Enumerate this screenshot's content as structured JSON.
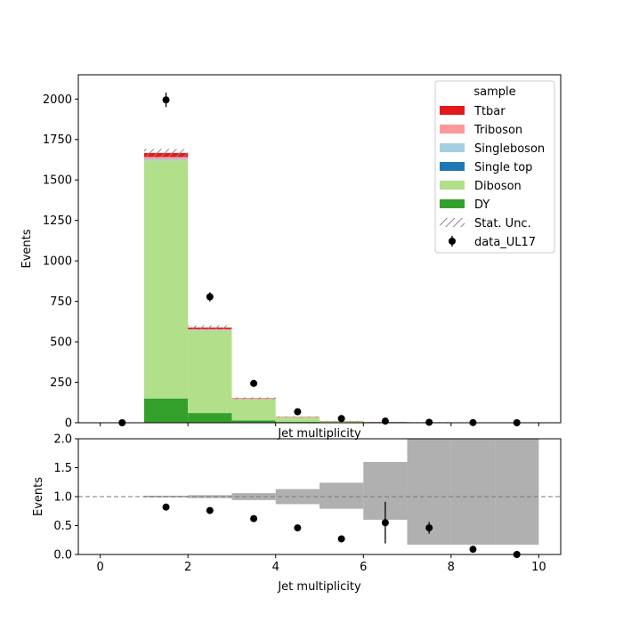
{
  "chart_data": [
    {
      "panel": "main",
      "type": "bar",
      "stacked": true,
      "xlabel": "Jet multiplicity",
      "ylabel": "Events",
      "xlim": [
        -0.5,
        10.5
      ],
      "ylim": [
        0,
        2150
      ],
      "xticks": [
        0,
        2,
        4,
        6,
        8,
        10
      ],
      "yticks": [
        0,
        250,
        500,
        750,
        1000,
        1250,
        1500,
        1750,
        2000
      ],
      "bin_edges": [
        0,
        1,
        2,
        3,
        4,
        5,
        6,
        7,
        8,
        9,
        10
      ],
      "series": [
        {
          "name": "DY",
          "color": "#33a02c",
          "values": [
            0,
            150,
            60,
            15,
            5,
            2,
            1,
            0,
            0,
            0
          ]
        },
        {
          "name": "Diboson",
          "color": "#b2df8a",
          "values": [
            0,
            1470,
            510,
            130,
            28,
            8,
            3,
            1,
            0,
            0
          ]
        },
        {
          "name": "Single top",
          "color": "#1f78b4",
          "values": [
            0,
            0,
            0,
            0,
            0,
            0,
            0,
            0,
            0,
            0
          ]
        },
        {
          "name": "Singleboson",
          "color": "#a6cee3",
          "values": [
            0,
            10,
            3,
            1,
            0,
            0,
            0,
            0,
            0,
            0
          ]
        },
        {
          "name": "Triboson",
          "color": "#fb9a99",
          "values": [
            0,
            12,
            5,
            2,
            1,
            0,
            0,
            0,
            0,
            0
          ]
        },
        {
          "name": "Ttbar",
          "color": "#e31a1c",
          "values": [
            0,
            25,
            10,
            3,
            2,
            1,
            1,
            2,
            0,
            0
          ]
        }
      ],
      "stat_unc": {
        "name": "Stat. Unc.",
        "values": [
          0,
          25,
          14,
          6,
          3,
          1.5,
          1,
          1,
          0,
          0
        ]
      },
      "data": {
        "name": "data_UL17",
        "x": [
          0.5,
          1.5,
          2.5,
          3.5,
          4.5,
          5.5,
          6.5,
          7.5,
          8.5,
          9.5
        ],
        "y": [
          0,
          1995,
          778,
          243,
          68,
          26,
          10,
          3,
          1,
          0
        ],
        "yerr": [
          0,
          45,
          28,
          16,
          8,
          5,
          3,
          2,
          1,
          0
        ]
      },
      "legend_title": "sample",
      "legend_loc": "upper right",
      "legend_order": [
        "Ttbar",
        "Triboson",
        "Singleboson",
        "Single top",
        "Diboson",
        "DY",
        "Stat. Unc.",
        "data_UL17"
      ]
    },
    {
      "panel": "ratio",
      "type": "scatter",
      "xlabel": "Jet multiplicity",
      "ylabel": "Events",
      "xlim": [
        -0.5,
        10.5
      ],
      "ylim": [
        0,
        2
      ],
      "xticks": [
        0,
        2,
        4,
        6,
        8,
        10
      ],
      "yticks": [
        0.0,
        0.5,
        1.0,
        1.5,
        2.0
      ],
      "yticklabels": [
        "0.0",
        "0.5",
        "1.0",
        "1.5",
        "2.0"
      ],
      "reference_line": 1.0,
      "unc_band": {
        "bin_edges": [
          1,
          2,
          3,
          4,
          5,
          6,
          7,
          8,
          9,
          10
        ],
        "lo": [
          0.985,
          0.975,
          0.94,
          0.87,
          0.79,
          0.6,
          0.17,
          0.17,
          0.17
        ],
        "hi": [
          1.015,
          1.025,
          1.06,
          1.13,
          1.24,
          1.6,
          2.0,
          2.0,
          2.0
        ]
      },
      "points": {
        "x": [
          1.5,
          2.5,
          3.5,
          4.5,
          5.5,
          6.5,
          7.5,
          8.5,
          9.5
        ],
        "y": [
          0.82,
          0.76,
          0.62,
          0.46,
          0.27,
          0.55,
          0.46,
          0.09,
          0.0
        ],
        "yerr": [
          0.02,
          0.02,
          0.03,
          0.05,
          0.05,
          0.36,
          0.1,
          0.02,
          0.0
        ]
      }
    }
  ]
}
